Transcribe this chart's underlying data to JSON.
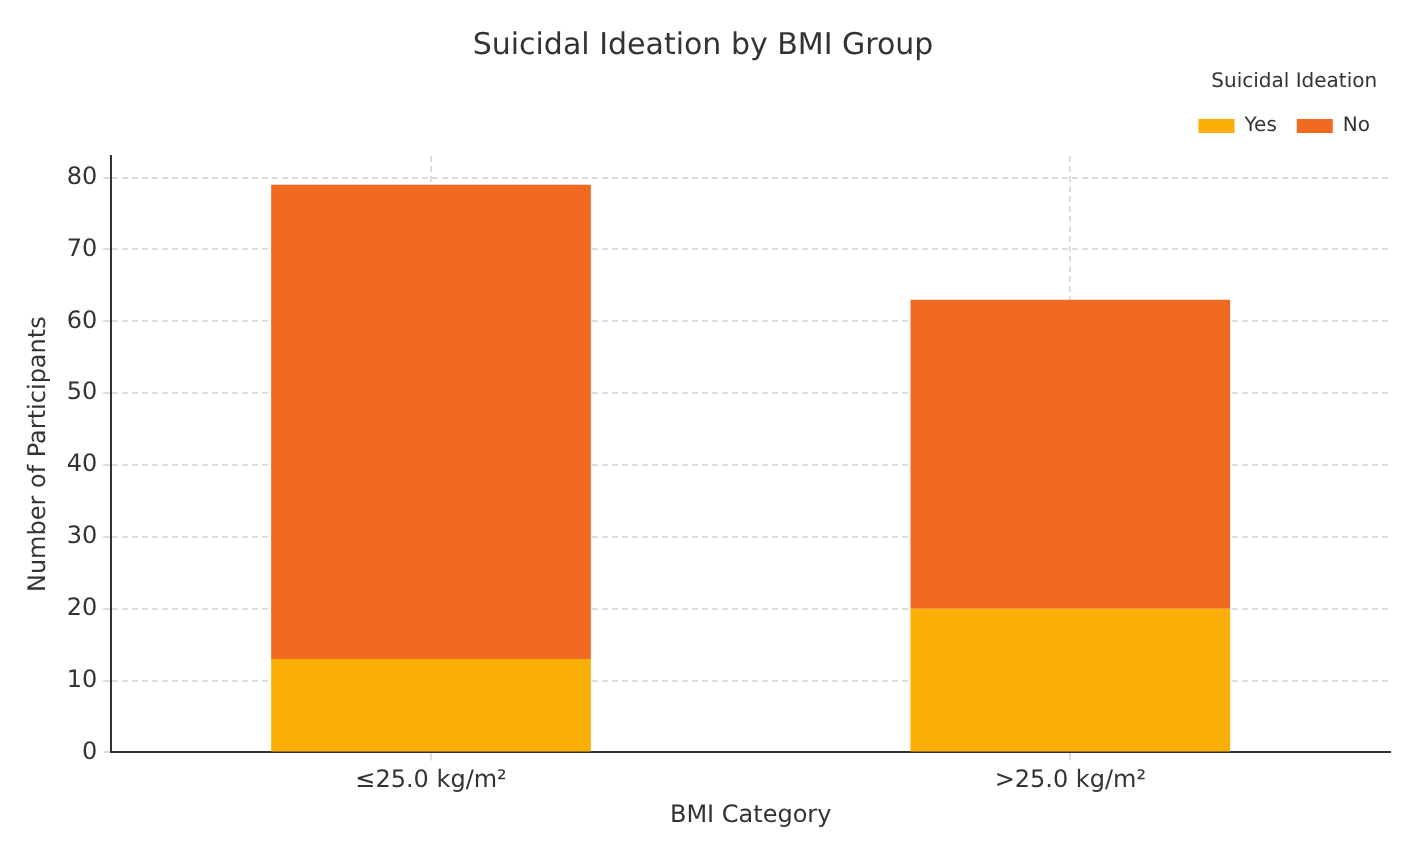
{
  "chart_data": {
    "type": "bar",
    "title": "Suicidal Ideation by BMI Group",
    "xlabel": "BMI Category",
    "ylabel": "Number of Participants",
    "legend_title": "Suicidal Ideation",
    "categories": [
      "≤25.0 kg/m²",
      ">25.0 kg/m²"
    ],
    "series": [
      {
        "name": "Yes",
        "color": "#fbae05",
        "values": [
          13,
          20
        ]
      },
      {
        "name": "No",
        "color": "#f06a22",
        "values": [
          66,
          43
        ]
      }
    ],
    "stacked": true,
    "ylim": [
      0,
      83
    ],
    "yticks": [
      0,
      10,
      20,
      30,
      40,
      50,
      60,
      70,
      80
    ],
    "grid": true,
    "legend": "top right"
  }
}
